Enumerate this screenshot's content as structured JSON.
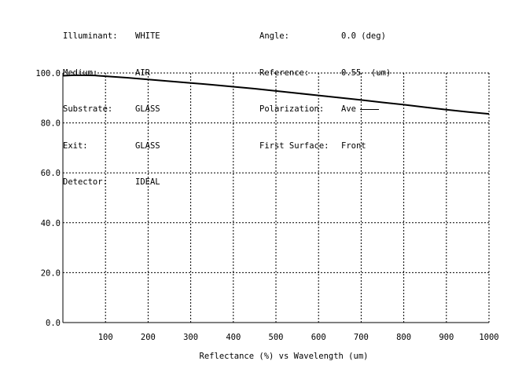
{
  "header": {
    "left": [
      {
        "label": "Illuminant:",
        "value": "WHITE"
      },
      {
        "label": "Medium:",
        "value": "AIR"
      },
      {
        "label": "Substrate:",
        "value": "GLASS"
      },
      {
        "label": "Exit:",
        "value": "GLASS"
      },
      {
        "label": "Detector:",
        "value": "IDEAL"
      }
    ],
    "right": [
      {
        "label": "Angle:",
        "value": "0.0 (deg)"
      },
      {
        "label": "Reference:",
        "value": "0.55  (um)"
      },
      {
        "label": "Polarization:",
        "value": "Ave"
      },
      {
        "label": "First Surface:",
        "value": "Front"
      }
    ]
  },
  "chart_data": {
    "type": "line",
    "xlabel": "Reflectance (%)  vs  Wavelength (um)",
    "ylabel": "",
    "xlim": [
      0,
      1000
    ],
    "ylim": [
      0,
      100
    ],
    "x_ticks": [
      100,
      200,
      300,
      400,
      500,
      600,
      700,
      800,
      900,
      1000
    ],
    "y_ticks": [
      "0.0",
      "20.0",
      "40.0",
      "60.0",
      "80.0",
      "100.0"
    ],
    "y_tick_values": [
      0,
      20,
      40,
      60,
      80,
      100
    ],
    "grid": true,
    "series": [
      {
        "x": [
          0,
          25,
          50,
          75,
          100,
          150,
          200,
          250,
          300,
          350,
          400,
          450,
          500,
          550,
          600,
          650,
          700,
          750,
          800,
          850,
          900,
          950,
          1000
        ],
        "y": [
          98.9,
          99.1,
          99.1,
          99.0,
          98.7,
          98.1,
          97.4,
          96.7,
          96.0,
          95.3,
          94.5,
          93.7,
          92.8,
          91.9,
          91.0,
          90.1,
          89.2,
          88.2,
          87.3,
          86.3,
          85.3,
          84.4,
          83.6
        ],
        "color": "#000000"
      }
    ]
  }
}
